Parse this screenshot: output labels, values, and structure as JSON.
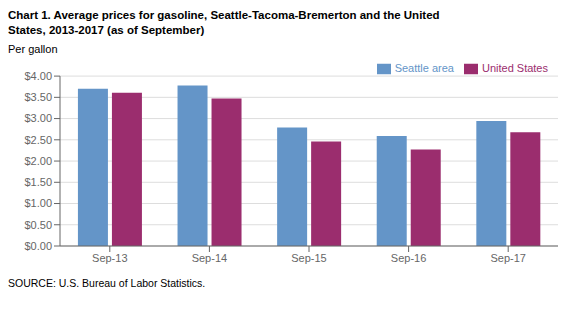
{
  "chart_data": {
    "type": "bar",
    "title": "Chart 1. Average prices for gasoline, Seattle-Tacoma-Bremerton and the United\nStates, 2013-2017  (as of September)",
    "y_label": "Per gallon",
    "annotations": [
      "SOURCE: U.S. Bureau of Labor Statistics."
    ],
    "categories": [
      "Sep-13",
      "Sep-14",
      "Sep-15",
      "Sep-16",
      "Sep-17"
    ],
    "series": [
      {
        "name": "Seattle area",
        "color": "#6495C8",
        "values": [
          3.7,
          3.78,
          2.79,
          2.59,
          2.94
        ]
      },
      {
        "name": "United States",
        "color": "#9B2D6E",
        "values": [
          3.61,
          3.47,
          2.46,
          2.27,
          2.68
        ]
      }
    ],
    "ylim": [
      0,
      4.0
    ],
    "yticks": [
      {
        "value": 0.0,
        "label": "$0.00"
      },
      {
        "value": 0.5,
        "label": "$0.50"
      },
      {
        "value": 1.0,
        "label": "$1.00"
      },
      {
        "value": 1.5,
        "label": "$1.50"
      },
      {
        "value": 2.0,
        "label": "$2.00"
      },
      {
        "value": 2.5,
        "label": "$2.50"
      },
      {
        "value": 3.0,
        "label": "$3.00"
      },
      {
        "value": 3.5,
        "label": "$3.50"
      },
      {
        "value": 4.0,
        "label": "$4.00"
      }
    ],
    "grid": true,
    "legend": "upper right"
  }
}
